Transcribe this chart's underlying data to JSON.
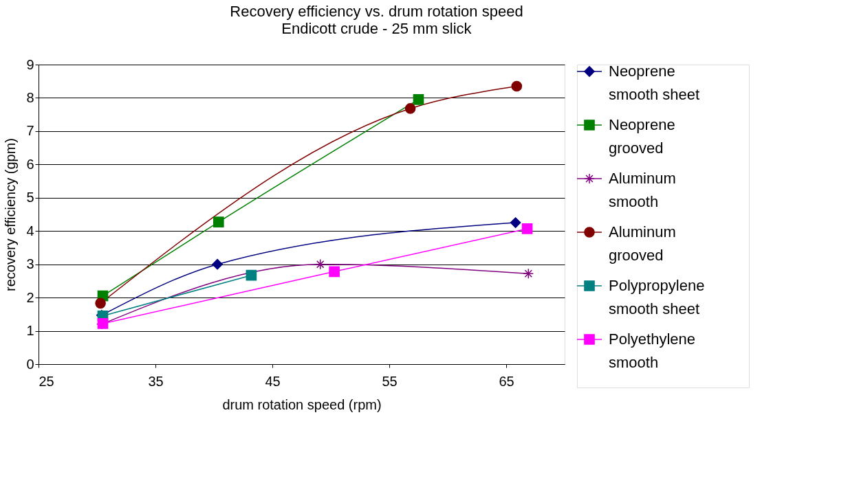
{
  "chart_data": {
    "type": "line",
    "title": "Recovery efficiency vs. drum rotation speed",
    "subtitle": "Endicott crude - 25 mm slick",
    "xlabel": "drum rotation speed (rpm)",
    "ylabel": "recovery efficiency (gpm)",
    "xlim": [
      25,
      70
    ],
    "xticks": [
      25,
      35,
      45,
      55,
      65
    ],
    "ylim": [
      0,
      9
    ],
    "yticks": [
      0,
      1,
      2,
      3,
      4,
      5,
      6,
      7,
      8,
      9
    ],
    "grid": "y",
    "legend": "right",
    "line_style": "solid",
    "series": [
      {
        "name": "Neoprene smooth sheet",
        "color": "#000080",
        "marker": "diamond",
        "x": [
          30.4,
          40.3,
          65.8
        ],
        "values": [
          1.47,
          3.0,
          4.25
        ]
      },
      {
        "name": "Neoprene grooved",
        "color": "#008000",
        "marker": "square",
        "x": [
          30.5,
          40.4,
          57.5
        ],
        "values": [
          2.05,
          4.27,
          7.95
        ]
      },
      {
        "name": "Aluminum smooth",
        "color": "#800080",
        "marker": "cross",
        "x": [
          30.4,
          49.1,
          66.9
        ],
        "values": [
          1.2,
          3.0,
          2.72
        ]
      },
      {
        "name": "Aluminum grooved",
        "color": "#800000",
        "marker": "circle",
        "x": [
          30.3,
          56.8,
          65.9
        ],
        "values": [
          1.83,
          7.68,
          8.35
        ]
      },
      {
        "name": "Polypropylene smooth sheet",
        "color": "#008080",
        "marker": "square",
        "x": [
          30.5,
          43.2
        ],
        "values": [
          1.45,
          2.67
        ]
      },
      {
        "name": "Polyethylene smooth",
        "color": "#ff00ff",
        "marker": "square",
        "x": [
          30.5,
          50.3,
          66.8
        ],
        "values": [
          1.22,
          2.78,
          4.07
        ]
      }
    ]
  }
}
